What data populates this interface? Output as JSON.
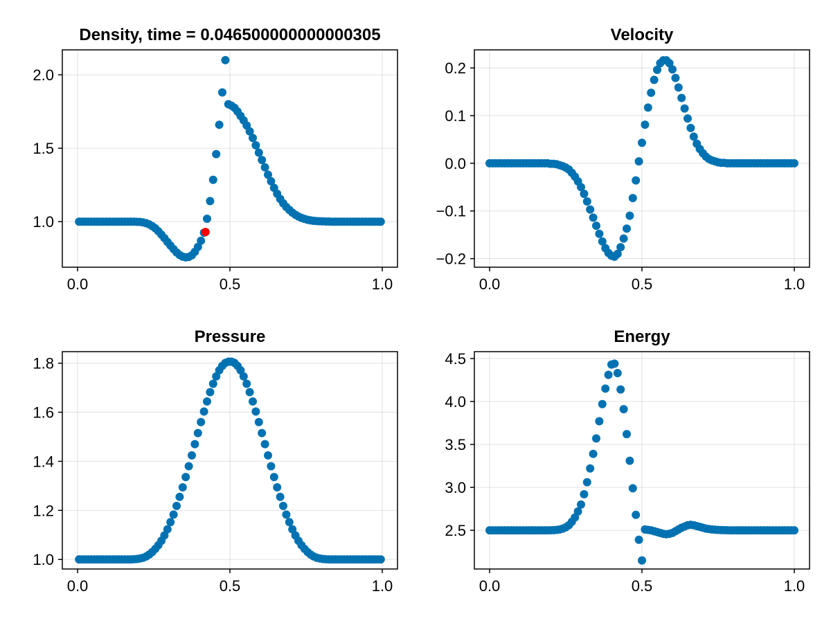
{
  "colors": {
    "series": "#0072b2",
    "highlight": "#ff0000",
    "axis": "#000000",
    "grid": "#e8e8e8"
  },
  "chart_data": [
    {
      "type": "scatter",
      "id": "density",
      "title": "Density, time = 0.046500000000000305",
      "xlabel": "",
      "ylabel": "",
      "xlim": [
        -0.05,
        1.05
      ],
      "ylim": [
        0.69,
        2.17
      ],
      "xticks": [
        0.0,
        0.5,
        1.0
      ],
      "xtick_labels": [
        "0.0",
        "0.5",
        "1.0"
      ],
      "yticks": [
        1.0,
        1.5,
        2.0
      ],
      "ytick_labels": [
        "1.0",
        "1.5",
        "2.0"
      ],
      "x": [
        0.005,
        0.015,
        0.025,
        0.035,
        0.045,
        0.055,
        0.065,
        0.075,
        0.085,
        0.095,
        0.105,
        0.115,
        0.125,
        0.135,
        0.145,
        0.155,
        0.165,
        0.175,
        0.185,
        0.195,
        0.205,
        0.215,
        0.225,
        0.235,
        0.245,
        0.255,
        0.265,
        0.275,
        0.285,
        0.295,
        0.305,
        0.315,
        0.325,
        0.335,
        0.345,
        0.355,
        0.365,
        0.375,
        0.385,
        0.395,
        0.405,
        0.415,
        0.425,
        0.435,
        0.445,
        0.455,
        0.465,
        0.475,
        0.485,
        0.495,
        0.505,
        0.515,
        0.525,
        0.535,
        0.545,
        0.555,
        0.565,
        0.575,
        0.585,
        0.595,
        0.605,
        0.615,
        0.625,
        0.635,
        0.645,
        0.655,
        0.665,
        0.675,
        0.685,
        0.695,
        0.705,
        0.715,
        0.725,
        0.735,
        0.745,
        0.755,
        0.765,
        0.775,
        0.785,
        0.795,
        0.805,
        0.815,
        0.825,
        0.835,
        0.845,
        0.855,
        0.865,
        0.875,
        0.885,
        0.895,
        0.905,
        0.915,
        0.925,
        0.935,
        0.945,
        0.955,
        0.965,
        0.975,
        0.985,
        0.995
      ],
      "y": [
        1.0,
        1.0,
        1.0,
        1.0,
        1.0,
        1.0,
        1.0,
        1.0,
        1.0,
        1.0,
        1.0,
        1.0,
        1.0,
        1.0,
        1.0,
        1.0,
        1.0,
        1.0,
        1.0,
        0.999,
        0.998,
        0.995,
        0.99,
        0.982,
        0.97,
        0.955,
        0.935,
        0.912,
        0.888,
        0.862,
        0.837,
        0.813,
        0.791,
        0.773,
        0.762,
        0.757,
        0.76,
        0.771,
        0.795,
        0.828,
        0.87,
        0.925,
        1.02,
        1.14,
        1.285,
        1.46,
        1.66,
        1.88,
        2.1,
        1.8,
        1.79,
        1.775,
        1.75,
        1.72,
        1.69,
        1.655,
        1.615,
        1.57,
        1.52,
        1.47,
        1.42,
        1.37,
        1.32,
        1.275,
        1.23,
        1.19,
        1.155,
        1.125,
        1.1,
        1.08,
        1.062,
        1.047,
        1.035,
        1.026,
        1.019,
        1.013,
        1.009,
        1.006,
        1.004,
        1.003,
        1.002,
        1.001,
        1.001,
        1.0,
        1.0,
        1.0,
        1.0,
        1.0,
        1.0,
        1.0,
        1.0,
        1.0,
        1.0,
        1.0,
        1.0,
        1.0,
        1.0,
        1.0,
        1.0,
        1.0
      ],
      "highlight_point": {
        "x": 0.42,
        "y": 0.93
      }
    },
    {
      "type": "scatter",
      "id": "velocity",
      "title": "Velocity",
      "xlabel": "",
      "ylabel": "",
      "xlim": [
        -0.05,
        1.05
      ],
      "ylim": [
        -0.218,
        0.238
      ],
      "xticks": [
        0.0,
        0.5,
        1.0
      ],
      "xtick_labels": [
        "0.0",
        "0.5",
        "1.0"
      ],
      "yticks": [
        -0.2,
        -0.1,
        0.0,
        0.1,
        0.2
      ],
      "ytick_labels": [
        "−0.2",
        "−0.1",
        "0.0",
        "0.1",
        "0.2"
      ],
      "x": [
        0.0,
        0.01,
        0.02,
        0.03,
        0.04,
        0.05,
        0.06,
        0.07,
        0.08,
        0.09,
        0.1,
        0.11,
        0.12,
        0.13,
        0.14,
        0.15,
        0.16,
        0.17,
        0.18,
        0.19,
        0.2,
        0.21,
        0.22,
        0.23,
        0.24,
        0.25,
        0.26,
        0.27,
        0.28,
        0.29,
        0.3,
        0.31,
        0.32,
        0.33,
        0.34,
        0.35,
        0.36,
        0.37,
        0.38,
        0.39,
        0.4,
        0.41,
        0.42,
        0.43,
        0.44,
        0.45,
        0.46,
        0.47,
        0.48,
        0.49,
        0.5,
        0.51,
        0.52,
        0.53,
        0.54,
        0.55,
        0.56,
        0.57,
        0.58,
        0.59,
        0.6,
        0.61,
        0.62,
        0.63,
        0.64,
        0.65,
        0.66,
        0.67,
        0.68,
        0.69,
        0.7,
        0.71,
        0.72,
        0.73,
        0.74,
        0.75,
        0.76,
        0.77,
        0.78,
        0.79,
        0.8,
        0.81,
        0.82,
        0.83,
        0.84,
        0.85,
        0.86,
        0.87,
        0.88,
        0.89,
        0.9,
        0.91,
        0.92,
        0.93,
        0.94,
        0.95,
        0.96,
        0.97,
        0.98,
        0.99,
        1.0
      ],
      "y": [
        0.0,
        0.0,
        0.0,
        0.0,
        0.0,
        0.0,
        0.0,
        0.0,
        0.0,
        0.0,
        0.0,
        0.0,
        0.0,
        0.0,
        0.0,
        0.0,
        0.0,
        0.0,
        0.0,
        0.0,
        -0.001,
        -0.001,
        -0.002,
        -0.004,
        -0.006,
        -0.009,
        -0.013,
        -0.02,
        -0.028,
        -0.038,
        -0.05,
        -0.064,
        -0.08,
        -0.097,
        -0.114,
        -0.131,
        -0.148,
        -0.164,
        -0.178,
        -0.188,
        -0.194,
        -0.196,
        -0.19,
        -0.176,
        -0.158,
        -0.137,
        -0.11,
        -0.073,
        -0.036,
        0.004,
        0.043,
        0.081,
        0.117,
        0.148,
        0.175,
        0.196,
        0.21,
        0.216,
        0.216,
        0.21,
        0.197,
        0.179,
        0.159,
        0.137,
        0.115,
        0.094,
        0.074,
        0.056,
        0.041,
        0.03,
        0.021,
        0.014,
        0.009,
        0.006,
        0.004,
        0.002,
        0.001,
        0.001,
        0.0,
        0.0,
        0.0,
        0.0,
        0.0,
        0.0,
        0.0,
        0.0,
        0.0,
        0.0,
        0.0,
        0.0,
        0.0,
        0.0,
        0.0,
        0.0,
        0.0,
        0.0,
        0.0,
        0.0,
        0.0,
        0.0,
        0.0
      ]
    },
    {
      "type": "scatter",
      "id": "pressure",
      "title": "Pressure",
      "xlabel": "",
      "ylabel": "",
      "xlim": [
        -0.05,
        1.05
      ],
      "ylim": [
        0.961,
        1.847
      ],
      "xticks": [
        0.0,
        0.5,
        1.0
      ],
      "xtick_labels": [
        "0.0",
        "0.5",
        "1.0"
      ],
      "yticks": [
        1.0,
        1.2,
        1.4,
        1.6,
        1.8
      ],
      "ytick_labels": [
        "1.0",
        "1.2",
        "1.4",
        "1.6",
        "1.8"
      ],
      "x": [
        0.005,
        0.015,
        0.025,
        0.035,
        0.045,
        0.055,
        0.065,
        0.075,
        0.085,
        0.095,
        0.105,
        0.115,
        0.125,
        0.135,
        0.145,
        0.155,
        0.165,
        0.175,
        0.185,
        0.195,
        0.205,
        0.215,
        0.225,
        0.235,
        0.245,
        0.255,
        0.265,
        0.275,
        0.285,
        0.295,
        0.305,
        0.315,
        0.325,
        0.335,
        0.345,
        0.355,
        0.365,
        0.375,
        0.385,
        0.395,
        0.405,
        0.415,
        0.425,
        0.435,
        0.445,
        0.455,
        0.465,
        0.475,
        0.485,
        0.495,
        0.505,
        0.515,
        0.525,
        0.535,
        0.545,
        0.555,
        0.565,
        0.575,
        0.585,
        0.595,
        0.605,
        0.615,
        0.625,
        0.635,
        0.645,
        0.655,
        0.665,
        0.675,
        0.685,
        0.695,
        0.705,
        0.715,
        0.725,
        0.735,
        0.745,
        0.755,
        0.765,
        0.775,
        0.785,
        0.795,
        0.805,
        0.815,
        0.825,
        0.835,
        0.845,
        0.855,
        0.865,
        0.875,
        0.885,
        0.895,
        0.905,
        0.915,
        0.925,
        0.935,
        0.945,
        0.955,
        0.965,
        0.975,
        0.985,
        0.995
      ],
      "y": [
        1.0,
        1.0,
        1.0,
        1.0,
        1.0,
        1.0,
        1.0,
        1.0,
        1.0,
        1.0,
        1.0,
        1.0,
        1.0,
        1.0,
        1.0,
        1.0,
        1.0,
        1.0,
        1.001,
        1.002,
        1.004,
        1.007,
        1.012,
        1.02,
        1.03,
        1.043,
        1.058,
        1.076,
        1.098,
        1.123,
        1.152,
        1.183,
        1.218,
        1.255,
        1.294,
        1.336,
        1.38,
        1.424,
        1.47,
        1.515,
        1.56,
        1.603,
        1.644,
        1.682,
        1.716,
        1.746,
        1.771,
        1.789,
        1.801,
        1.806,
        1.806,
        1.801,
        1.789,
        1.771,
        1.746,
        1.716,
        1.682,
        1.644,
        1.603,
        1.56,
        1.515,
        1.47,
        1.424,
        1.38,
        1.336,
        1.294,
        1.255,
        1.218,
        1.183,
        1.152,
        1.123,
        1.098,
        1.076,
        1.058,
        1.043,
        1.03,
        1.02,
        1.012,
        1.007,
        1.004,
        1.002,
        1.001,
        1.0,
        1.0,
        1.0,
        1.0,
        1.0,
        1.0,
        1.0,
        1.0,
        1.0,
        1.0,
        1.0,
        1.0,
        1.0,
        1.0,
        1.0,
        1.0,
        1.0,
        1.0
      ]
    },
    {
      "type": "scatter",
      "id": "energy",
      "title": "Energy",
      "xlabel": "",
      "ylabel": "",
      "xlim": [
        -0.05,
        1.05
      ],
      "ylim": [
        2.05,
        4.58
      ],
      "xticks": [
        0.0,
        0.5,
        1.0
      ],
      "xtick_labels": [
        "0.0",
        "0.5",
        "1.0"
      ],
      "yticks": [
        2.5,
        3.0,
        3.5,
        4.0,
        4.5
      ],
      "ytick_labels": [
        "2.5",
        "3.0",
        "3.5",
        "4.0",
        "4.5"
      ],
      "x": [
        0.0,
        0.01,
        0.02,
        0.03,
        0.04,
        0.05,
        0.06,
        0.07,
        0.08,
        0.09,
        0.1,
        0.11,
        0.12,
        0.13,
        0.14,
        0.15,
        0.16,
        0.17,
        0.18,
        0.19,
        0.2,
        0.21,
        0.22,
        0.23,
        0.24,
        0.25,
        0.26,
        0.27,
        0.28,
        0.29,
        0.3,
        0.31,
        0.32,
        0.33,
        0.34,
        0.35,
        0.36,
        0.37,
        0.38,
        0.39,
        0.4,
        0.41,
        0.42,
        0.43,
        0.44,
        0.45,
        0.46,
        0.47,
        0.48,
        0.49,
        0.5,
        0.51,
        0.52,
        0.53,
        0.54,
        0.55,
        0.56,
        0.57,
        0.58,
        0.59,
        0.6,
        0.61,
        0.62,
        0.63,
        0.64,
        0.65,
        0.66,
        0.67,
        0.68,
        0.69,
        0.7,
        0.71,
        0.72,
        0.73,
        0.74,
        0.75,
        0.76,
        0.77,
        0.78,
        0.79,
        0.8,
        0.81,
        0.82,
        0.83,
        0.84,
        0.85,
        0.86,
        0.87,
        0.88,
        0.89,
        0.9,
        0.91,
        0.92,
        0.93,
        0.94,
        0.95,
        0.96,
        0.97,
        0.98,
        0.99,
        1.0
      ],
      "y": [
        2.5,
        2.5,
        2.5,
        2.5,
        2.5,
        2.5,
        2.5,
        2.5,
        2.5,
        2.5,
        2.5,
        2.5,
        2.5,
        2.5,
        2.5,
        2.5,
        2.5,
        2.5,
        2.5,
        2.5,
        2.501,
        2.502,
        2.505,
        2.51,
        2.52,
        2.535,
        2.56,
        2.6,
        2.65,
        2.72,
        2.8,
        2.92,
        3.06,
        3.22,
        3.39,
        3.57,
        3.77,
        3.97,
        4.15,
        4.31,
        4.43,
        4.44,
        4.33,
        4.14,
        3.91,
        3.62,
        3.31,
        2.99,
        2.68,
        2.39,
        2.15,
        2.51,
        2.505,
        2.5,
        2.49,
        2.48,
        2.47,
        2.46,
        2.455,
        2.46,
        2.47,
        2.49,
        2.51,
        2.53,
        2.545,
        2.56,
        2.565,
        2.56,
        2.55,
        2.54,
        2.53,
        2.52,
        2.515,
        2.51,
        2.507,
        2.505,
        2.503,
        2.502,
        2.501,
        2.5,
        2.5,
        2.5,
        2.5,
        2.5,
        2.5,
        2.5,
        2.5,
        2.5,
        2.5,
        2.5,
        2.5,
        2.5,
        2.5,
        2.5,
        2.5,
        2.5,
        2.5,
        2.5,
        2.5,
        2.5,
        2.5
      ]
    }
  ]
}
